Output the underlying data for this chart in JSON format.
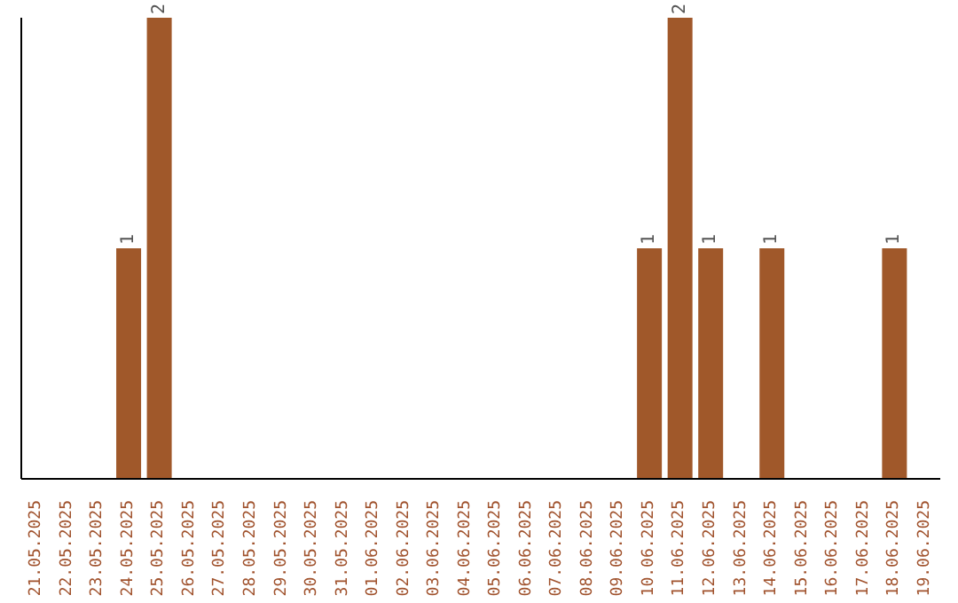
{
  "chart_data": {
    "type": "bar",
    "categories": [
      "21.05.2025",
      "22.05.2025",
      "23.05.2025",
      "24.05.2025",
      "25.05.2025",
      "26.05.2025",
      "27.05.2025",
      "28.05.2025",
      "29.05.2025",
      "30.05.2025",
      "31.05.2025",
      "01.06.2025",
      "02.06.2025",
      "03.06.2025",
      "04.06.2025",
      "05.06.2025",
      "06.06.2025",
      "07.06.2025",
      "08.06.2025",
      "09.06.2025",
      "10.06.2025",
      "11.06.2025",
      "12.06.2025",
      "13.06.2025",
      "14.06.2025",
      "15.06.2025",
      "16.06.2025",
      "17.06.2025",
      "18.06.2025",
      "19.06.2025"
    ],
    "values": [
      0,
      0,
      0,
      1,
      2,
      0,
      0,
      0,
      0,
      0,
      0,
      0,
      0,
      0,
      0,
      0,
      0,
      0,
      0,
      0,
      1,
      2,
      1,
      0,
      1,
      0,
      0,
      0,
      1,
      0
    ],
    "value_labels": [
      null,
      null,
      null,
      "1",
      "2",
      null,
      null,
      null,
      null,
      null,
      null,
      null,
      null,
      null,
      null,
      null,
      null,
      null,
      null,
      null,
      "1",
      "2",
      "1",
      null,
      "1",
      null,
      null,
      null,
      "1",
      null
    ],
    "color": "#a0582a"
  }
}
